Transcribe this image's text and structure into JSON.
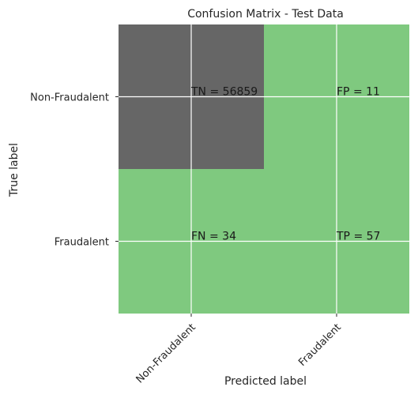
{
  "chart_data": {
    "type": "heatmap",
    "title": "Confusion Matrix - Test Data",
    "xlabel": "Predicted label",
    "ylabel": "True label",
    "x_categories": [
      "Non-Fraudalent",
      "Fraudalent"
    ],
    "y_categories": [
      "Non-Fraudalent",
      "Fraudalent"
    ],
    "cells": [
      [
        {
          "text": "TN = 56859",
          "value": 56859
        },
        {
          "text": "FP = 11",
          "value": 11
        }
      ],
      [
        {
          "text": "FN = 34",
          "value": 34
        },
        {
          "text": "TP = 57",
          "value": 57
        }
      ]
    ],
    "colors": {
      "high": "#666666",
      "low": "#7fc97f",
      "grid": "#ffffff",
      "text": "#262626"
    },
    "grid": true
  }
}
